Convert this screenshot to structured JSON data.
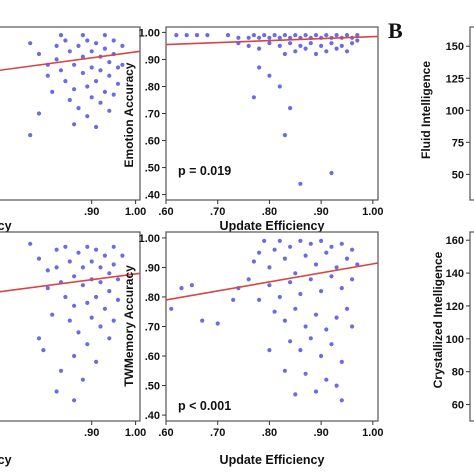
{
  "figure": {
    "panel_letter": "B"
  },
  "chart_data": [
    {
      "id": "top_left",
      "type": "scatter",
      "xlabel": "Efficiency",
      "ylabel": "",
      "xticks": [
        ".90",
        "1.00"
      ],
      "xlim": [
        0.6,
        1.01
      ],
      "ylim": [
        0.38,
        1.02
      ],
      "points": [
        [
          0.76,
          0.96
        ],
        [
          0.78,
          0.92
        ],
        [
          0.8,
          0.88
        ],
        [
          0.8,
          0.84
        ],
        [
          0.82,
          0.95
        ],
        [
          0.82,
          0.9
        ],
        [
          0.83,
          0.86
        ],
        [
          0.84,
          0.82
        ],
        [
          0.84,
          0.97
        ],
        [
          0.85,
          0.93
        ],
        [
          0.86,
          0.88
        ],
        [
          0.86,
          0.79
        ],
        [
          0.87,
          0.95
        ],
        [
          0.88,
          0.91
        ],
        [
          0.88,
          0.85
        ],
        [
          0.89,
          0.8
        ],
        [
          0.89,
          0.97
        ],
        [
          0.9,
          0.93
        ],
        [
          0.9,
          0.87
        ],
        [
          0.91,
          0.82
        ],
        [
          0.91,
          0.96
        ],
        [
          0.92,
          0.91
        ],
        [
          0.92,
          0.86
        ],
        [
          0.93,
          0.78
        ],
        [
          0.93,
          0.94
        ],
        [
          0.94,
          0.89
        ],
        [
          0.94,
          0.84
        ],
        [
          0.95,
          0.97
        ],
        [
          0.95,
          0.92
        ],
        [
          0.96,
          0.87
        ],
        [
          0.96,
          0.81
        ],
        [
          0.97,
          0.95
        ],
        [
          0.85,
          0.75
        ],
        [
          0.9,
          0.76
        ],
        [
          0.87,
          0.72
        ],
        [
          0.92,
          0.74
        ],
        [
          0.81,
          0.78
        ],
        [
          0.95,
          0.77
        ],
        [
          0.78,
          0.7
        ],
        [
          0.89,
          0.69
        ],
        [
          0.94,
          0.71
        ],
        [
          0.86,
          0.66
        ],
        [
          0.91,
          0.65
        ],
        [
          0.76,
          0.62
        ],
        [
          0.97,
          0.88
        ],
        [
          0.83,
          0.99
        ],
        [
          0.88,
          0.99
        ],
        [
          0.93,
          0.99
        ]
      ],
      "fit": {
        "x": [
          0.6,
          1.01
        ],
        "y": [
          0.84,
          0.93
        ]
      }
    },
    {
      "id": "top_middle",
      "type": "scatter",
      "xlabel": "Update Efficiency",
      "ylabel": "Emotion Accuracy",
      "xticks": [
        ".60",
        ".70",
        ".80",
        ".90",
        "1.00"
      ],
      "yticks": [
        ".40",
        ".50",
        ".60",
        ".70",
        ".80",
        ".90",
        "1.00"
      ],
      "xlim": [
        0.6,
        1.01
      ],
      "ylim": [
        0.38,
        1.02
      ],
      "annotation": "p = 0.019",
      "points": [
        [
          0.62,
          0.99
        ],
        [
          0.64,
          0.99
        ],
        [
          0.66,
          0.99
        ],
        [
          0.68,
          0.99
        ],
        [
          0.72,
          0.99
        ],
        [
          0.74,
          0.98
        ],
        [
          0.76,
          0.98
        ],
        [
          0.77,
          0.99
        ],
        [
          0.78,
          0.98
        ],
        [
          0.79,
          0.99
        ],
        [
          0.8,
          0.98
        ],
        [
          0.81,
          0.99
        ],
        [
          0.82,
          0.98
        ],
        [
          0.83,
          0.99
        ],
        [
          0.84,
          0.98
        ],
        [
          0.85,
          0.99
        ],
        [
          0.86,
          0.98
        ],
        [
          0.87,
          0.99
        ],
        [
          0.88,
          0.98
        ],
        [
          0.89,
          0.99
        ],
        [
          0.9,
          0.98
        ],
        [
          0.91,
          0.99
        ],
        [
          0.92,
          0.98
        ],
        [
          0.93,
          0.99
        ],
        [
          0.94,
          0.98
        ],
        [
          0.95,
          0.99
        ],
        [
          0.96,
          0.98
        ],
        [
          0.97,
          0.99
        ],
        [
          0.8,
          0.96
        ],
        [
          0.82,
          0.95
        ],
        [
          0.84,
          0.96
        ],
        [
          0.86,
          0.95
        ],
        [
          0.88,
          0.96
        ],
        [
          0.9,
          0.95
        ],
        [
          0.92,
          0.96
        ],
        [
          0.94,
          0.95
        ],
        [
          0.96,
          0.96
        ],
        [
          0.76,
          0.95
        ],
        [
          0.78,
          0.94
        ],
        [
          0.85,
          0.93
        ],
        [
          0.91,
          0.93
        ],
        [
          0.95,
          0.93
        ],
        [
          0.74,
          0.96
        ],
        [
          0.87,
          0.94
        ],
        [
          0.93,
          0.94
        ],
        [
          0.97,
          0.97
        ],
        [
          0.83,
          0.92
        ],
        [
          0.89,
          0.92
        ],
        [
          0.78,
          0.87
        ],
        [
          0.8,
          0.84
        ],
        [
          0.82,
          0.8
        ],
        [
          0.77,
          0.76
        ],
        [
          0.84,
          0.72
        ],
        [
          0.83,
          0.62
        ],
        [
          0.86,
          0.44
        ],
        [
          0.92,
          0.48
        ]
      ],
      "fit": {
        "x": [
          0.6,
          1.01
        ],
        "y": [
          0.955,
          0.985
        ]
      }
    },
    {
      "id": "top_right",
      "type": "scatter",
      "xlabel": "",
      "ylabel": "Fluid Intelligence",
      "yticks": [
        "50",
        "75",
        "100",
        "125",
        "150"
      ],
      "ylim": [
        30,
        165
      ],
      "points": []
    },
    {
      "id": "bottom_left",
      "type": "scatter",
      "xlabel": "Efficiency",
      "ylabel": "",
      "xticks": [
        ".90",
        "1.00"
      ],
      "xlim": [
        0.6,
        1.01
      ],
      "ylim": [
        0.38,
        1.02
      ],
      "points": [
        [
          0.76,
          0.98
        ],
        [
          0.78,
          0.93
        ],
        [
          0.8,
          0.89
        ],
        [
          0.8,
          0.83
        ],
        [
          0.82,
          0.96
        ],
        [
          0.82,
          0.9
        ],
        [
          0.83,
          0.85
        ],
        [
          0.84,
          0.8
        ],
        [
          0.84,
          0.97
        ],
        [
          0.85,
          0.92
        ],
        [
          0.86,
          0.87
        ],
        [
          0.86,
          0.77
        ],
        [
          0.87,
          0.95
        ],
        [
          0.88,
          0.9
        ],
        [
          0.88,
          0.84
        ],
        [
          0.89,
          0.78
        ],
        [
          0.89,
          0.97
        ],
        [
          0.9,
          0.92
        ],
        [
          0.9,
          0.86
        ],
        [
          0.91,
          0.8
        ],
        [
          0.91,
          0.96
        ],
        [
          0.92,
          0.9
        ],
        [
          0.92,
          0.85
        ],
        [
          0.93,
          0.76
        ],
        [
          0.93,
          0.94
        ],
        [
          0.94,
          0.88
        ],
        [
          0.94,
          0.82
        ],
        [
          0.95,
          0.97
        ],
        [
          0.95,
          0.91
        ],
        [
          0.96,
          0.86
        ],
        [
          0.96,
          0.79
        ],
        [
          0.97,
          0.94
        ],
        [
          0.85,
          0.72
        ],
        [
          0.9,
          0.73
        ],
        [
          0.87,
          0.68
        ],
        [
          0.92,
          0.7
        ],
        [
          0.81,
          0.74
        ],
        [
          0.95,
          0.72
        ],
        [
          0.78,
          0.66
        ],
        [
          0.89,
          0.64
        ],
        [
          0.94,
          0.66
        ],
        [
          0.86,
          0.6
        ],
        [
          0.91,
          0.58
        ],
        [
          0.83,
          0.55
        ],
        [
          0.88,
          0.52
        ],
        [
          0.82,
          0.48
        ],
        [
          0.86,
          0.45
        ],
        [
          0.79,
          0.62
        ]
      ],
      "fit": {
        "x": [
          0.6,
          1.01
        ],
        "y": [
          0.8,
          0.88
        ]
      }
    },
    {
      "id": "bottom_middle",
      "type": "scatter",
      "xlabel": "Update Efficiency",
      "ylabel": "TWMemory Accuracy",
      "xticks": [
        ".60",
        ".70",
        ".80",
        ".90",
        "1.00"
      ],
      "yticks": [
        ".40",
        ".50",
        ".60",
        ".70",
        ".80",
        ".90",
        "1.00"
      ],
      "xlim": [
        0.6,
        1.01
      ],
      "ylim": [
        0.38,
        1.02
      ],
      "annotation": "p < 0.001",
      "points": [
        [
          0.63,
          0.83
        ],
        [
          0.65,
          0.84
        ],
        [
          0.61,
          0.76
        ],
        [
          0.67,
          0.72
        ],
        [
          0.7,
          0.71
        ],
        [
          0.73,
          0.79
        ],
        [
          0.74,
          0.83
        ],
        [
          0.76,
          0.86
        ],
        [
          0.77,
          0.92
        ],
        [
          0.78,
          0.95
        ],
        [
          0.79,
          0.99
        ],
        [
          0.8,
          0.9
        ],
        [
          0.81,
          0.96
        ],
        [
          0.82,
          0.99
        ],
        [
          0.83,
          0.93
        ],
        [
          0.84,
          0.97
        ],
        [
          0.85,
          0.88
        ],
        [
          0.86,
          0.99
        ],
        [
          0.87,
          0.94
        ],
        [
          0.88,
          0.98
        ],
        [
          0.89,
          0.91
        ],
        [
          0.9,
          0.99
        ],
        [
          0.91,
          0.95
        ],
        [
          0.92,
          0.97
        ],
        [
          0.93,
          0.9
        ],
        [
          0.94,
          0.98
        ],
        [
          0.95,
          0.93
        ],
        [
          0.96,
          0.96
        ],
        [
          0.97,
          0.91
        ],
        [
          0.8,
          0.84
        ],
        [
          0.82,
          0.8
        ],
        [
          0.84,
          0.85
        ],
        [
          0.86,
          0.81
        ],
        [
          0.88,
          0.86
        ],
        [
          0.9,
          0.82
        ],
        [
          0.92,
          0.87
        ],
        [
          0.94,
          0.83
        ],
        [
          0.96,
          0.86
        ],
        [
          0.81,
          0.75
        ],
        [
          0.83,
          0.72
        ],
        [
          0.85,
          0.76
        ],
        [
          0.87,
          0.7
        ],
        [
          0.89,
          0.74
        ],
        [
          0.91,
          0.69
        ],
        [
          0.93,
          0.73
        ],
        [
          0.95,
          0.76
        ],
        [
          0.84,
          0.65
        ],
        [
          0.86,
          0.62
        ],
        [
          0.88,
          0.66
        ],
        [
          0.9,
          0.6
        ],
        [
          0.92,
          0.64
        ],
        [
          0.94,
          0.58
        ],
        [
          0.83,
          0.55
        ],
        [
          0.87,
          0.54
        ],
        [
          0.91,
          0.52
        ],
        [
          0.89,
          0.48
        ],
        [
          0.93,
          0.5
        ],
        [
          0.85,
          0.47
        ],
        [
          0.94,
          0.45
        ],
        [
          0.8,
          0.62
        ],
        [
          0.96,
          0.7
        ],
        [
          0.78,
          0.79
        ]
      ],
      "fit": {
        "x": [
          0.6,
          1.01
        ],
        "y": [
          0.79,
          0.915
        ]
      }
    },
    {
      "id": "bottom_right",
      "type": "scatter",
      "xlabel": "",
      "ylabel": "Crystallized Intelligence",
      "yticks": [
        "60",
        "80",
        "100",
        "120",
        "140",
        "160"
      ],
      "ylim": [
        50,
        165
      ],
      "points": []
    }
  ]
}
